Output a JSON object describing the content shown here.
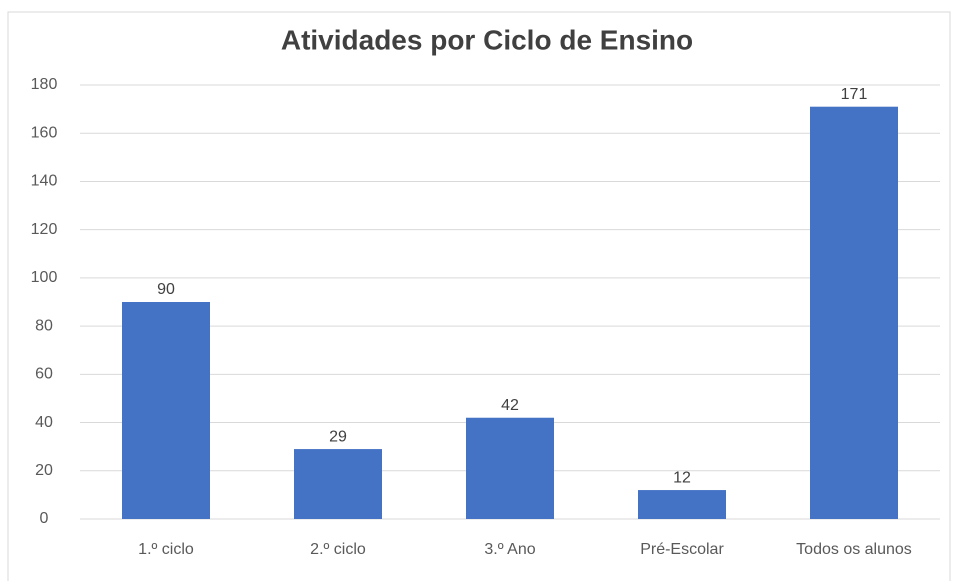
{
  "chart_data": {
    "type": "bar",
    "title": "Atividades por Ciclo de Ensino",
    "categories": [
      "1.º ciclo",
      "2.º ciclo",
      "3.º Ano",
      "Pré-Escolar",
      "Todos os alunos"
    ],
    "values": [
      90,
      29,
      42,
      12,
      171
    ],
    "color": "#4472c4",
    "ylim": [
      0,
      180
    ],
    "yticks": [
      0,
      20,
      40,
      60,
      80,
      100,
      120,
      140,
      160,
      180
    ],
    "grid": true
  }
}
